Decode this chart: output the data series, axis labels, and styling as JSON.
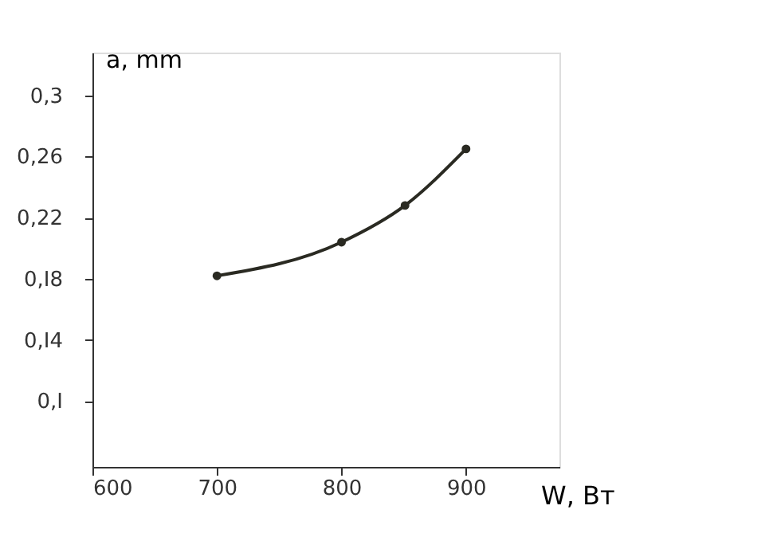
{
  "chart_data": {
    "type": "line",
    "xlabel": "W, Вт",
    "ylabel": "a, mm",
    "x": [
      700,
      800,
      851,
      900
    ],
    "series": [
      {
        "color": "#2a2a22",
        "values": [
          0.182,
          0.204,
          0.228,
          0.265
        ]
      }
    ],
    "xlim": [
      600,
      975
    ],
    "ylim": [
      0.057,
      0.328
    ],
    "xticks": [
      600,
      700,
      800,
      900
    ],
    "yticks": [
      {
        "value": 0.1,
        "label": "0,I"
      },
      {
        "value": 0.14,
        "label": "0,I4"
      },
      {
        "value": 0.18,
        "label": "0,I8"
      },
      {
        "value": 0.22,
        "label": "0,22"
      },
      {
        "value": 0.26,
        "label": "0,26"
      },
      {
        "value": 0.3,
        "label": "0,3"
      }
    ],
    "marker": "circle",
    "line_style": "solid",
    "grid": false
  }
}
